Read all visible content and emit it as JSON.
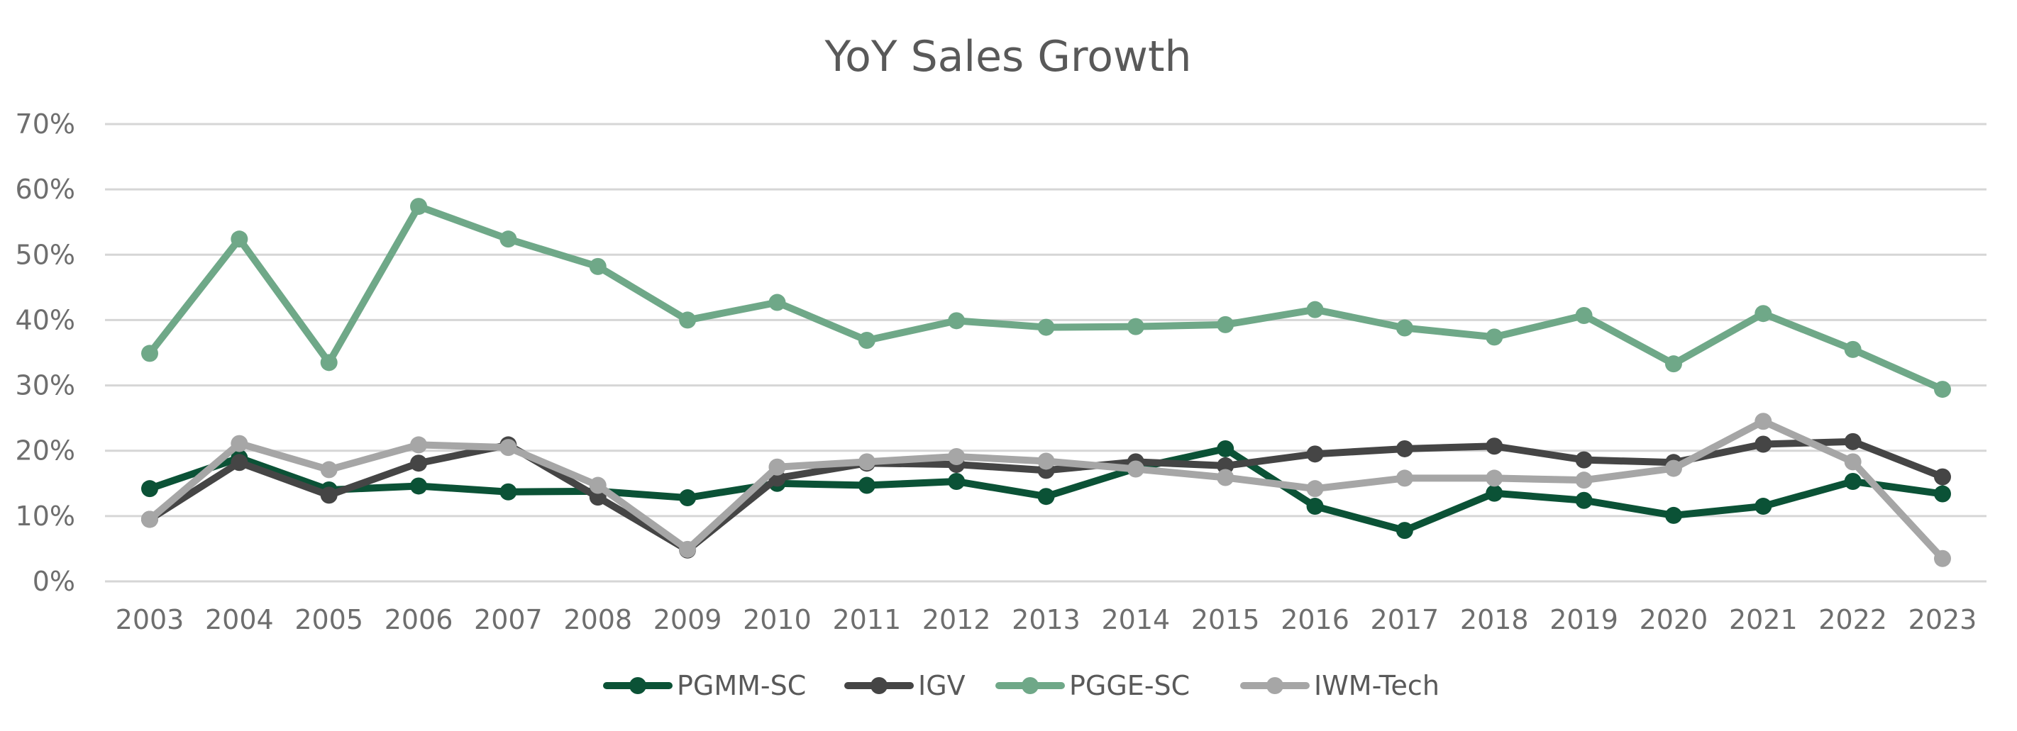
{
  "chart_data": {
    "type": "line",
    "title": "YoY Sales Growth",
    "xlabel": "",
    "ylabel": "",
    "ylim": [
      0,
      70
    ],
    "y_ticks": [
      "0%",
      "10%",
      "20%",
      "30%",
      "40%",
      "50%",
      "60%",
      "70%"
    ],
    "y_tick_values": [
      0,
      10,
      20,
      30,
      40,
      50,
      60,
      70
    ],
    "grid": true,
    "legend_position": "bottom",
    "categories": [
      "2003",
      "2004",
      "2005",
      "2006",
      "2007",
      "2008",
      "2009",
      "2010",
      "2011",
      "2012",
      "2013",
      "2014",
      "2015",
      "2016",
      "2017",
      "2018",
      "2019",
      "2020",
      "2021",
      "2022",
      "2023"
    ],
    "series": [
      {
        "name": "PGMM-SC",
        "color": "#0b5236",
        "values": [
          14.2,
          18.9,
          14.0,
          14.6,
          13.7,
          13.8,
          12.8,
          15.0,
          14.7,
          15.3,
          13.0,
          17.3,
          20.3,
          11.5,
          7.8,
          13.5,
          12.4,
          10.1,
          11.5,
          15.3,
          13.4
        ]
      },
      {
        "name": "IGV",
        "color": "#454545",
        "values": [
          9.5,
          18.2,
          13.2,
          18.1,
          20.9,
          12.9,
          4.8,
          15.8,
          18.1,
          17.9,
          17.0,
          18.3,
          17.7,
          19.5,
          20.3,
          20.7,
          18.6,
          18.2,
          21.0,
          21.4,
          16.0
        ]
      },
      {
        "name": "PGGE-SC",
        "color": "#6fa888",
        "values": [
          34.9,
          52.4,
          33.5,
          57.4,
          52.4,
          48.2,
          40.0,
          42.7,
          36.9,
          39.9,
          38.9,
          39.0,
          39.3,
          41.6,
          38.8,
          37.4,
          40.7,
          33.3,
          41.0,
          35.5,
          29.4
        ]
      },
      {
        "name": "IWM-Tech",
        "color": "#a6a6a6",
        "values": [
          9.5,
          21.1,
          17.1,
          20.9,
          20.5,
          14.7,
          4.9,
          17.5,
          18.3,
          19.1,
          18.4,
          17.2,
          15.9,
          14.2,
          15.8,
          15.8,
          15.5,
          17.3,
          24.5,
          18.3,
          3.5
        ]
      }
    ]
  }
}
